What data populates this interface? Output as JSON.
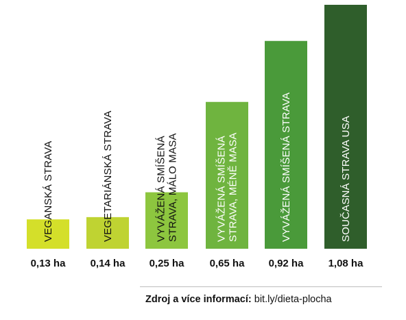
{
  "chart_data": {
    "type": "bar",
    "categories": [
      [
        "VEGANSKÁ STRAVA"
      ],
      [
        "VEGETARIÁNSKÁ STRAVA"
      ],
      [
        "VYVÁŽENÁ SMÍŠENÁ",
        "STRAVA, MÁLO MASA"
      ],
      [
        "VYVÁŽENÁ SMÍŠENÁ",
        "STRAVA, MÉNĚ MASA"
      ],
      [
        "VYVÁŽENÁ SMÍŠENÁ STRAVA"
      ],
      [
        "SOUČASNÁ STRAVA USA"
      ]
    ],
    "values": [
      0.13,
      0.14,
      0.25,
      0.65,
      0.92,
      1.08
    ],
    "value_labels": [
      "0,13 ha",
      "0,14 ha",
      "0,25 ha",
      "0,65 ha",
      "0,92 ha",
      "1,08 ha"
    ],
    "colors": [
      "#d4df2a",
      "#bfd332",
      "#8dc63f",
      "#6fb43f",
      "#4a9a3a",
      "#2f5e2b"
    ],
    "label_colors": [
      "#111111",
      "#111111",
      "#111111",
      "#ffffff",
      "#ffffff",
      "#ffffff"
    ],
    "ylim": [
      0,
      1.08
    ],
    "grid": false,
    "title": "",
    "xlabel": "",
    "ylabel": ""
  },
  "source": {
    "label": "Zdroj a více informací",
    "separator": ":",
    "link_text": " bit.ly/dieta-plocha"
  }
}
